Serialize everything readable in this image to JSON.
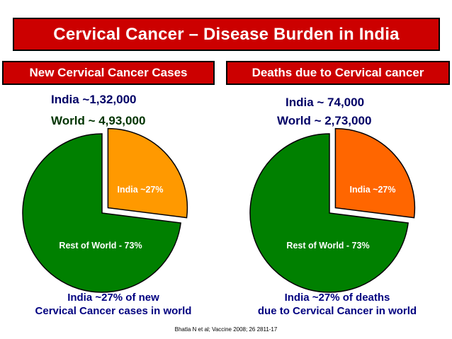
{
  "title": "Cervical Cancer – Disease Burden in India",
  "reference": "Bhatla N et al; Vaccine 2008; 26 2811-17",
  "colors": {
    "title_bg": "#cc0000",
    "rest_of_world": "#008000",
    "india_cases": "#ff9900",
    "india_deaths": "#ff6600"
  },
  "panels": {
    "cases": {
      "header": "New Cervical Cancer Cases",
      "india_stat": "India ~1,32,000",
      "world_stat": "World ~ 4,93,000",
      "caption_line1": "India ~27% of new",
      "caption_line2": "Cervical Cancer cases in world"
    },
    "deaths": {
      "header": "Deaths due to Cervical cancer",
      "india_stat": "India ~ 74,000",
      "world_stat": "World ~ 2,73,000",
      "caption_line1": "India ~27% of deaths",
      "caption_line2": "due to Cervical Cancer in world"
    }
  },
  "chart_data": [
    {
      "type": "pie",
      "title": "New Cervical Cancer Cases",
      "slices": [
        {
          "label": "India ~27%",
          "value": 27,
          "color": "#ff9900",
          "exploded": true
        },
        {
          "label": "Rest of World - 73%",
          "value": 73,
          "color": "#008000",
          "exploded": false
        }
      ]
    },
    {
      "type": "pie",
      "title": "Deaths due to Cervical cancer",
      "slices": [
        {
          "label": "India ~27%",
          "value": 27,
          "color": "#ff6600",
          "exploded": true
        },
        {
          "label": "Rest of World - 73%",
          "value": 73,
          "color": "#008000",
          "exploded": false
        }
      ]
    }
  ]
}
